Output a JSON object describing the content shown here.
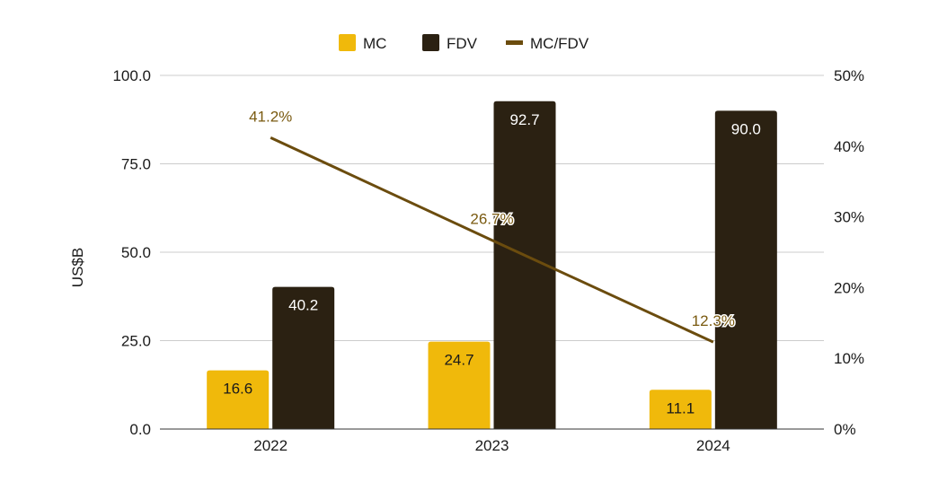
{
  "chart_data": {
    "type": "bar",
    "categories": [
      "2022",
      "2023",
      "2024"
    ],
    "series": [
      {
        "name": "MC",
        "kind": "bar",
        "axis": "left",
        "values": [
          16.6,
          24.7,
          11.1
        ],
        "labels": [
          "16.6",
          "24.7",
          "11.1"
        ],
        "color": "#F0B90B",
        "label_color": "#1a1a1a"
      },
      {
        "name": "FDV",
        "kind": "bar",
        "axis": "left",
        "values": [
          40.2,
          92.7,
          90.0
        ],
        "labels": [
          "40.2",
          "92.7",
          "90.0"
        ],
        "color": "#2B2112",
        "label_color": "#ffffff"
      },
      {
        "name": "MC/FDV",
        "kind": "line",
        "axis": "right",
        "values": [
          41.2,
          26.7,
          12.3
        ],
        "labels": [
          "41.2%",
          "26.7%",
          "12.3%"
        ],
        "color": "#6B4C0E",
        "label_color": "#7A5A10"
      }
    ],
    "ylabel": "US$B",
    "ylim": [
      0,
      100
    ],
    "y_ticks": [
      "0.0",
      "25.0",
      "50.0",
      "75.0",
      "100.0"
    ],
    "y2lim": [
      0,
      50
    ],
    "y2_ticks": [
      "0%",
      "10%",
      "20%",
      "30%",
      "40%",
      "50%"
    ],
    "grid": true,
    "legend_position": "top-center"
  }
}
